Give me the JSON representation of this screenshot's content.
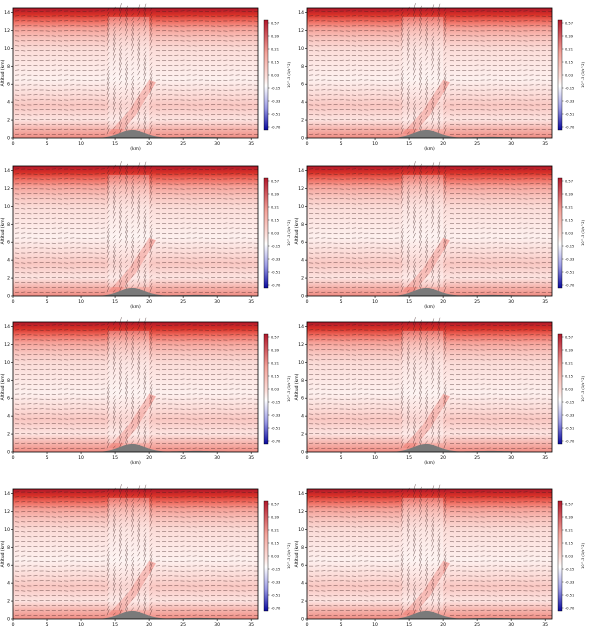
{
  "figure": {
    "panel_count": 8
  },
  "chart_data": [
    {
      "type": "heatmap",
      "panel": 1,
      "xlabel": "(km)",
      "ylabel": "Altitud (km)",
      "xlim": [
        0,
        36
      ],
      "ylim": [
        0,
        14.5
      ],
      "xticks": [
        0,
        5,
        10,
        15,
        20,
        25,
        30,
        35
      ],
      "yticks": [
        0,
        2,
        4,
        6,
        8,
        10,
        12,
        14
      ],
      "colorbar": {
        "label": "10^-3 (1/s^2)",
        "ticks": [
          0.57,
          0.39,
          0.21,
          0.15,
          0.03,
          -0.15,
          -0.33,
          -0.51,
          -0.7
        ],
        "colors": {
          "max": "#b2182b",
          "mid": "#fde0dc",
          "zero": "#ffffff",
          "min": "#08089e"
        }
      },
      "terrain": {
        "peak_x_km": 17.5,
        "peak_height_km": 0.9,
        "color": "#7a7a7a"
      },
      "overlay": "wind vectors"
    },
    {
      "type": "heatmap",
      "panel": 2,
      "xlabel": "(km)",
      "ylabel": "",
      "xlim": [
        0,
        36
      ],
      "ylim": [
        0,
        14.5
      ],
      "xticks": [
        0,
        5,
        10,
        15,
        20,
        25,
        30,
        35
      ],
      "yticks": [
        0,
        2,
        4,
        6,
        8,
        10,
        12,
        14
      ],
      "colorbar": {
        "label": "10^-3 (1/s^2)",
        "ticks": [
          0.57,
          0.39,
          0.21,
          0.15,
          0.03,
          -0.15,
          -0.33,
          -0.51,
          -0.7
        ],
        "colors": {
          "max": "#b2182b",
          "mid": "#fde0dc",
          "zero": "#ffffff",
          "min": "#08089e"
        }
      },
      "terrain": {
        "peak_x_km": 17.5,
        "peak_height_km": 0.9,
        "color": "#7a7a7a"
      },
      "overlay": "wind vectors"
    },
    {
      "type": "heatmap",
      "panel": 3,
      "xlabel": "(km)",
      "ylabel": "Altitud (km)",
      "xlim": [
        0,
        36
      ],
      "ylim": [
        0,
        14.5
      ],
      "xticks": [
        0,
        5,
        10,
        15,
        20,
        25,
        30,
        35
      ],
      "yticks": [
        0,
        2,
        4,
        6,
        8,
        10,
        12,
        14
      ],
      "colorbar": {
        "label": "10^-3 (1/s^2)",
        "ticks": [
          0.57,
          0.39,
          0.21,
          0.15,
          0.03,
          -0.15,
          -0.33,
          -0.51,
          -0.7
        ],
        "colors": {
          "max": "#b2182b",
          "mid": "#fde0dc",
          "zero": "#ffffff",
          "min": "#08089e"
        }
      },
      "terrain": {
        "peak_x_km": 17.5,
        "peak_height_km": 0.9,
        "color": "#7a7a7a"
      },
      "overlay": "wind vectors"
    },
    {
      "type": "heatmap",
      "panel": 4,
      "xlabel": "(km)",
      "ylabel": "Altitud (km)",
      "xlim": [
        0,
        36
      ],
      "ylim": [
        0,
        14.5
      ],
      "xticks": [
        0,
        5,
        10,
        15,
        20,
        25,
        30,
        35
      ],
      "yticks": [
        0,
        2,
        4,
        6,
        8,
        10,
        12,
        14
      ],
      "colorbar": {
        "label": "10^-3 (1/s^2)",
        "ticks": [
          0.57,
          0.39,
          0.21,
          0.15,
          0.03,
          -0.15,
          -0.33,
          -0.51,
          -0.7
        ],
        "colors": {
          "max": "#b2182b",
          "mid": "#fde0dc",
          "zero": "#ffffff",
          "min": "#08089e"
        }
      },
      "terrain": {
        "peak_x_km": 17.5,
        "peak_height_km": 0.9,
        "color": "#7a7a7a"
      },
      "overlay": "wind vectors"
    },
    {
      "type": "heatmap",
      "panel": 5,
      "xlabel": "(km)",
      "ylabel": "Altitud (km)",
      "xlim": [
        0,
        36
      ],
      "ylim": [
        0,
        14.5
      ],
      "xticks": [
        0,
        5,
        10,
        15,
        20,
        25,
        30,
        35
      ],
      "yticks": [
        0,
        2,
        4,
        6,
        8,
        10,
        12,
        14
      ],
      "colorbar": {
        "label": "10^-3 (1/s^2)",
        "ticks": [
          0.57,
          0.39,
          0.21,
          0.15,
          0.03,
          -0.15,
          -0.33,
          -0.51,
          -0.7
        ],
        "colors": {
          "max": "#b2182b",
          "mid": "#fde0dc",
          "zero": "#ffffff",
          "min": "#08089e"
        }
      },
      "terrain": {
        "peak_x_km": 17.5,
        "peak_height_km": 0.9,
        "color": "#7a7a7a"
      },
      "overlay": "wind vectors"
    },
    {
      "type": "heatmap",
      "panel": 6,
      "xlabel": "(km)",
      "ylabel": "Altitud (km)",
      "xlim": [
        0,
        36
      ],
      "ylim": [
        0,
        14.5
      ],
      "xticks": [
        0,
        5,
        10,
        15,
        20,
        25,
        30,
        35
      ],
      "yticks": [
        0,
        2,
        4,
        6,
        8,
        10,
        12,
        14
      ],
      "colorbar": {
        "label": "10^-3 (1/s^2)",
        "ticks": [
          0.57,
          0.39,
          0.21,
          0.15,
          0.03,
          -0.15,
          -0.33,
          -0.51,
          -0.7
        ],
        "colors": {
          "max": "#b2182b",
          "mid": "#fde0dc",
          "zero": "#ffffff",
          "min": "#08089e"
        }
      },
      "terrain": {
        "peak_x_km": 17.5,
        "peak_height_km": 0.9,
        "color": "#7a7a7a"
      },
      "overlay": "wind vectors"
    },
    {
      "type": "heatmap",
      "panel": 7,
      "xlabel": "",
      "ylabel": "Altitud (km)",
      "xlim": [
        0,
        36
      ],
      "ylim": [
        0,
        14.5
      ],
      "xticks": [
        0,
        5,
        10,
        15,
        20,
        25,
        30,
        35
      ],
      "yticks": [
        0,
        2,
        4,
        6,
        8,
        10,
        12,
        14
      ],
      "colorbar": {
        "label": "10^-3 (1/s^2)",
        "ticks": [
          0.57,
          0.39,
          0.21,
          0.15,
          0.03,
          -0.15,
          -0.33,
          -0.51,
          -0.7
        ],
        "colors": {
          "max": "#b2182b",
          "mid": "#fde0dc",
          "zero": "#ffffff",
          "min": "#08089e"
        }
      },
      "terrain": {
        "peak_x_km": 17.5,
        "peak_height_km": 0.9,
        "color": "#7a7a7a"
      },
      "overlay": "wind vectors"
    },
    {
      "type": "heatmap",
      "panel": 8,
      "xlabel": "",
      "ylabel": "Altitud (km)",
      "xlim": [
        0,
        36
      ],
      "ylim": [
        0,
        14.5
      ],
      "xticks": [
        0,
        5,
        10,
        15,
        20,
        25,
        30,
        35
      ],
      "yticks": [
        0,
        2,
        4,
        6,
        8,
        10,
        12,
        14
      ],
      "colorbar": {
        "label": "10^-3 (1/s^2)",
        "ticks": [
          0.57,
          0.39,
          0.21,
          0.15,
          0.03,
          -0.15,
          -0.33,
          -0.51,
          -0.7
        ],
        "colors": {
          "max": "#b2182b",
          "mid": "#fde0dc",
          "zero": "#ffffff",
          "min": "#08089e"
        }
      },
      "terrain": {
        "peak_x_km": 17.5,
        "peak_height_km": 0.9,
        "color": "#7a7a7a"
      },
      "overlay": "wind vectors"
    }
  ]
}
